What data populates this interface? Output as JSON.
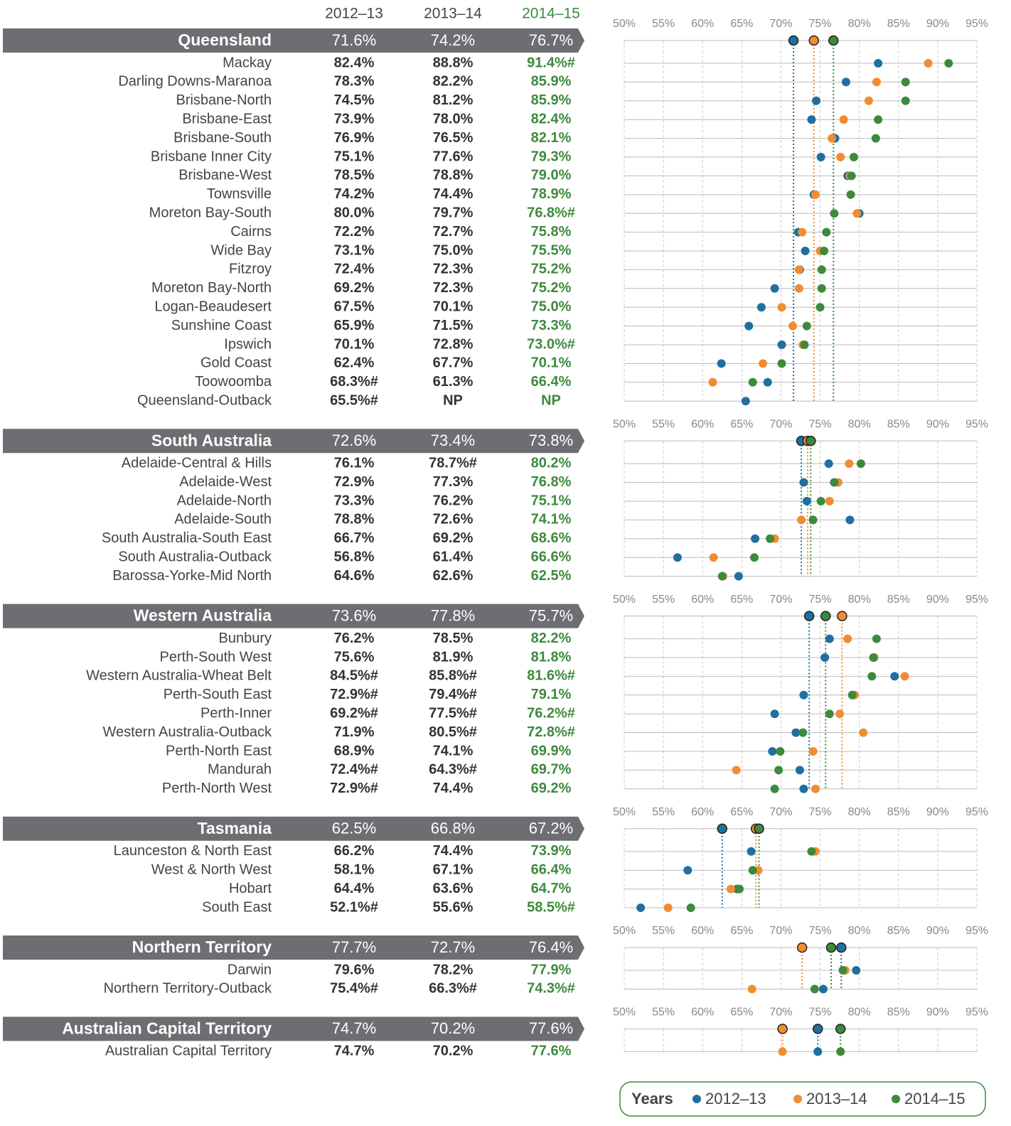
{
  "chart_data": {
    "type": "dot",
    "legend_title": "Years",
    "series": [
      {
        "name": "2012–13",
        "color": "#1f6fa0"
      },
      {
        "name": "2013–14",
        "color": "#f28c30"
      },
      {
        "name": "2014–15",
        "color": "#3d8a3d"
      }
    ],
    "xlim": [
      50,
      95
    ],
    "xticks": [
      {
        "value": 50,
        "label": "50%"
      },
      {
        "value": 55,
        "label": "55%"
      },
      {
        "value": 60,
        "label": "60%"
      },
      {
        "value": 65,
        "label": "65%"
      },
      {
        "value": 70,
        "label": "70%"
      },
      {
        "value": 75,
        "label": "75%"
      },
      {
        "value": 80,
        "label": "80%"
      },
      {
        "value": 85,
        "label": "85%"
      },
      {
        "value": 90,
        "label": "90%"
      },
      {
        "value": 95,
        "label": "95%"
      }
    ],
    "grid": true,
    "groups": [
      {
        "name": "Queensland",
        "values": [
          71.6,
          74.2,
          76.7
        ],
        "value_labels": [
          "71.6%",
          "74.2%",
          "76.7%"
        ],
        "rows": [
          {
            "name": "Mackay",
            "values": [
              82.4,
              88.8,
              91.4
            ],
            "value_labels": [
              "82.4%",
              "88.8%",
              "91.4%#"
            ]
          },
          {
            "name": "Darling Downs-Maranoa",
            "values": [
              78.3,
              82.2,
              85.9
            ],
            "value_labels": [
              "78.3%",
              "82.2%",
              "85.9%"
            ]
          },
          {
            "name": "Brisbane-North",
            "values": [
              74.5,
              81.2,
              85.9
            ],
            "value_labels": [
              "74.5%",
              "81.2%",
              "85.9%"
            ]
          },
          {
            "name": "Brisbane-East",
            "values": [
              73.9,
              78.0,
              82.4
            ],
            "value_labels": [
              "73.9%",
              "78.0%",
              "82.4%"
            ]
          },
          {
            "name": "Brisbane-South",
            "values": [
              76.9,
              76.5,
              82.1
            ],
            "value_labels": [
              "76.9%",
              "76.5%",
              "82.1%"
            ]
          },
          {
            "name": "Brisbane Inner City",
            "values": [
              75.1,
              77.6,
              79.3
            ],
            "value_labels": [
              "75.1%",
              "77.6%",
              "79.3%"
            ]
          },
          {
            "name": "Brisbane-West",
            "values": [
              78.5,
              78.8,
              79.0
            ],
            "value_labels": [
              "78.5%",
              "78.8%",
              "79.0%"
            ]
          },
          {
            "name": "Townsville",
            "values": [
              74.2,
              74.4,
              78.9
            ],
            "value_labels": [
              "74.2%",
              "74.4%",
              "78.9%"
            ]
          },
          {
            "name": "Moreton Bay-South",
            "values": [
              80.0,
              79.7,
              76.8
            ],
            "value_labels": [
              "80.0%",
              "79.7%",
              "76.8%#"
            ]
          },
          {
            "name": "Cairns",
            "values": [
              72.2,
              72.7,
              75.8
            ],
            "value_labels": [
              "72.2%",
              "72.7%",
              "75.8%"
            ]
          },
          {
            "name": "Wide Bay",
            "values": [
              73.1,
              75.0,
              75.5
            ],
            "value_labels": [
              "73.1%",
              "75.0%",
              "75.5%"
            ]
          },
          {
            "name": "Fitzroy",
            "values": [
              72.4,
              72.3,
              75.2
            ],
            "value_labels": [
              "72.4%",
              "72.3%",
              "75.2%"
            ]
          },
          {
            "name": "Moreton Bay-North",
            "values": [
              69.2,
              72.3,
              75.2
            ],
            "value_labels": [
              "69.2%",
              "72.3%",
              "75.2%"
            ]
          },
          {
            "name": "Logan-Beaudesert",
            "values": [
              67.5,
              70.1,
              75.0
            ],
            "value_labels": [
              "67.5%",
              "70.1%",
              "75.0%"
            ]
          },
          {
            "name": "Sunshine Coast",
            "values": [
              65.9,
              71.5,
              73.3
            ],
            "value_labels": [
              "65.9%",
              "71.5%",
              "73.3%"
            ]
          },
          {
            "name": "Ipswich",
            "values": [
              70.1,
              72.8,
              73.0
            ],
            "value_labels": [
              "70.1%",
              "72.8%",
              "73.0%#"
            ]
          },
          {
            "name": "Gold Coast",
            "values": [
              62.4,
              67.7,
              70.1
            ],
            "value_labels": [
              "62.4%",
              "67.7%",
              "70.1%"
            ]
          },
          {
            "name": "Toowoomba",
            "values": [
              68.3,
              61.3,
              66.4
            ],
            "value_labels": [
              "68.3%#",
              "61.3%",
              "66.4%"
            ]
          },
          {
            "name": "Queensland-Outback",
            "values": [
              65.5,
              null,
              null
            ],
            "value_labels": [
              "65.5%#",
              "NP",
              "NP"
            ]
          }
        ]
      },
      {
        "name": "South Australia",
        "values": [
          72.6,
          73.4,
          73.8
        ],
        "value_labels": [
          "72.6%",
          "73.4%",
          "73.8%"
        ],
        "rows": [
          {
            "name": "Adelaide-Central & Hills",
            "values": [
              76.1,
              78.7,
              80.2
            ],
            "value_labels": [
              "76.1%",
              "78.7%#",
              "80.2%"
            ]
          },
          {
            "name": "Adelaide-West",
            "values": [
              72.9,
              77.3,
              76.8
            ],
            "value_labels": [
              "72.9%",
              "77.3%",
              "76.8%"
            ]
          },
          {
            "name": "Adelaide-North",
            "values": [
              73.3,
              76.2,
              75.1
            ],
            "value_labels": [
              "73.3%",
              "76.2%",
              "75.1%"
            ]
          },
          {
            "name": "Adelaide-South",
            "values": [
              78.8,
              72.6,
              74.1
            ],
            "value_labels": [
              "78.8%",
              "72.6%",
              "74.1%"
            ]
          },
          {
            "name": "South Australia-South East",
            "values": [
              66.7,
              69.2,
              68.6
            ],
            "value_labels": [
              "66.7%",
              "69.2%",
              "68.6%"
            ]
          },
          {
            "name": "South Australia-Outback",
            "values": [
              56.8,
              61.4,
              66.6
            ],
            "value_labels": [
              "56.8%",
              "61.4%",
              "66.6%"
            ]
          },
          {
            "name": "Barossa-Yorke-Mid North",
            "values": [
              64.6,
              62.6,
              62.5
            ],
            "value_labels": [
              "64.6%",
              "62.6%",
              "62.5%"
            ]
          }
        ]
      },
      {
        "name": "Western Australia",
        "values": [
          73.6,
          77.8,
          75.7
        ],
        "value_labels": [
          "73.6%",
          "77.8%",
          "75.7%"
        ],
        "rows": [
          {
            "name": "Bunbury",
            "values": [
              76.2,
              78.5,
              82.2
            ],
            "value_labels": [
              "76.2%",
              "78.5%",
              "82.2%"
            ]
          },
          {
            "name": "Perth-South West",
            "values": [
              75.6,
              81.9,
              81.8
            ],
            "value_labels": [
              "75.6%",
              "81.9%",
              "81.8%"
            ]
          },
          {
            "name": "Western Australia-Wheat Belt",
            "values": [
              84.5,
              85.8,
              81.6
            ],
            "value_labels": [
              "84.5%#",
              "85.8%#",
              "81.6%#"
            ]
          },
          {
            "name": "Perth-South East",
            "values": [
              72.9,
              79.4,
              79.1
            ],
            "value_labels": [
              "72.9%#",
              "79.4%#",
              "79.1%"
            ]
          },
          {
            "name": "Perth-Inner",
            "values": [
              69.2,
              77.5,
              76.2
            ],
            "value_labels": [
              "69.2%#",
              "77.5%#",
              "76.2%#"
            ]
          },
          {
            "name": "Western Australia-Outback",
            "values": [
              71.9,
              80.5,
              72.8
            ],
            "value_labels": [
              "71.9%",
              "80.5%#",
              "72.8%#"
            ]
          },
          {
            "name": "Perth-North East",
            "values": [
              68.9,
              74.1,
              69.9
            ],
            "value_labels": [
              "68.9%",
              "74.1%",
              "69.9%"
            ]
          },
          {
            "name": "Mandurah",
            "values": [
              72.4,
              64.3,
              69.7
            ],
            "value_labels": [
              "72.4%#",
              "64.3%#",
              "69.7%"
            ]
          },
          {
            "name": "Perth-North West",
            "values": [
              72.9,
              74.4,
              69.2
            ],
            "value_labels": [
              "72.9%#",
              "74.4%",
              "69.2%"
            ]
          }
        ]
      },
      {
        "name": "Tasmania",
        "values": [
          62.5,
          66.8,
          67.2
        ],
        "value_labels": [
          "62.5%",
          "66.8%",
          "67.2%"
        ],
        "rows": [
          {
            "name": "Launceston & North East",
            "values": [
              66.2,
              74.4,
              73.9
            ],
            "value_labels": [
              "66.2%",
              "74.4%",
              "73.9%"
            ]
          },
          {
            "name": "West & North West",
            "values": [
              58.1,
              67.1,
              66.4
            ],
            "value_labels": [
              "58.1%",
              "67.1%",
              "66.4%"
            ]
          },
          {
            "name": "Hobart",
            "values": [
              64.4,
              63.6,
              64.7
            ],
            "value_labels": [
              "64.4%",
              "63.6%",
              "64.7%"
            ]
          },
          {
            "name": "South East",
            "values": [
              52.1,
              55.6,
              58.5
            ],
            "value_labels": [
              "52.1%#",
              "55.6%",
              "58.5%#"
            ]
          }
        ]
      },
      {
        "name": "Northern Territory",
        "values": [
          77.7,
          72.7,
          76.4
        ],
        "value_labels": [
          "77.7%",
          "72.7%",
          "76.4%"
        ],
        "rows": [
          {
            "name": "Darwin",
            "values": [
              79.6,
              78.2,
              77.9
            ],
            "value_labels": [
              "79.6%",
              "78.2%",
              "77.9%"
            ]
          },
          {
            "name": "Northern Territory-Outback",
            "values": [
              75.4,
              66.3,
              74.3
            ],
            "value_labels": [
              "75.4%#",
              "66.3%#",
              "74.3%#"
            ]
          }
        ]
      },
      {
        "name": "Australian Capital Territory",
        "values": [
          74.7,
          70.2,
          77.6
        ],
        "value_labels": [
          "74.7%",
          "70.2%",
          "77.6%"
        ],
        "rows": [
          {
            "name": "Australian Capital Territory",
            "values": [
              74.7,
              70.2,
              77.6
            ],
            "value_labels": [
              "74.7%",
              "70.2%",
              "77.6%"
            ]
          }
        ]
      }
    ]
  }
}
